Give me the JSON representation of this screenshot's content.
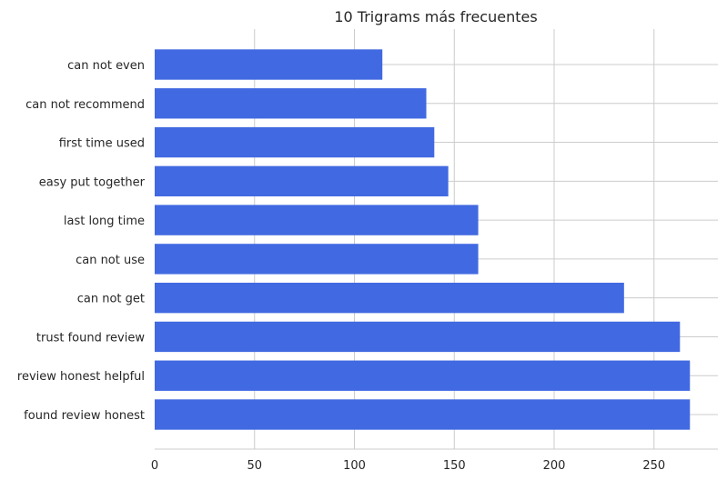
{
  "chart_data": {
    "type": "bar",
    "orientation": "horizontal",
    "title": "10 Trigrams más frecuentes",
    "xlabel": "",
    "ylabel": "",
    "categories": [
      "found review honest",
      "review honest helpful",
      "trust found review",
      "can not get",
      "can not use",
      "last long time",
      "easy put together",
      "first time used",
      "can not recommend",
      "can not even"
    ],
    "values": [
      268,
      268,
      263,
      235,
      162,
      162,
      147,
      140,
      136,
      114
    ],
    "xlim": [
      0,
      282
    ],
    "xticks": [
      0,
      50,
      100,
      150,
      200,
      250
    ],
    "grid": true,
    "bar_color": "#4169e1",
    "grid_color": "#cccccc"
  }
}
